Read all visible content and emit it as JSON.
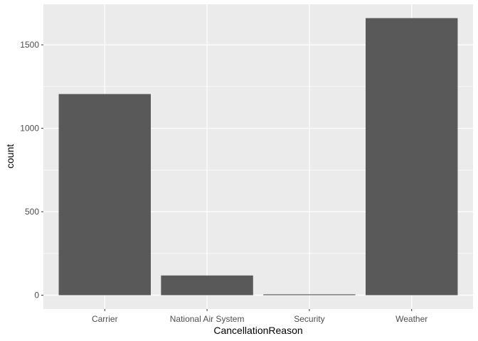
{
  "chart_data": {
    "type": "bar",
    "categories": [
      "Carrier",
      "National Air System",
      "Security",
      "Weather"
    ],
    "values": [
      1205,
      118,
      5,
      1660
    ],
    "xlabel": "CancellationReason",
    "ylabel": "count",
    "y_ticks": [
      0,
      500,
      1000,
      1500
    ],
    "ylim": [
      -83,
      1743
    ],
    "grid": true,
    "panel_background": "#ebebeb",
    "bar_color": "#595959",
    "grid_color": "#ffffff"
  }
}
